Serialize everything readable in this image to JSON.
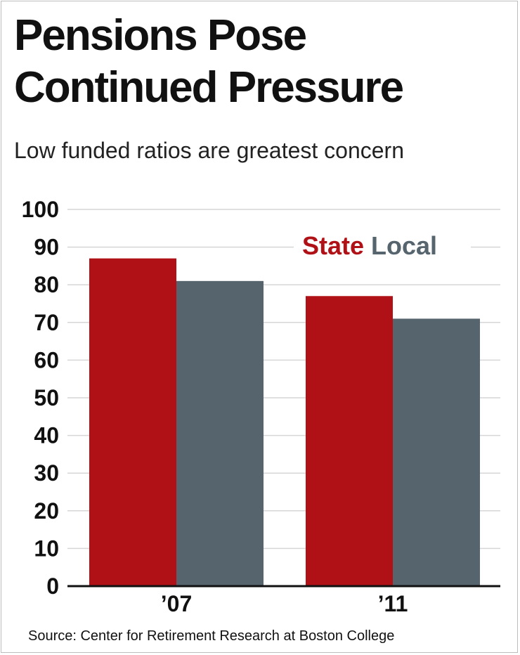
{
  "title": "Pensions Pose Continued Pressure",
  "subtitle": "Low funded ratios are greatest concern",
  "source": "Source: Center for Retirement Research at Boston College",
  "colors": {
    "state": "#B01116",
    "local": "#56646D",
    "gridline": "#d6d6d6",
    "axis": "#111111"
  },
  "chart_data": {
    "type": "bar",
    "title": "Pensions Pose Continued Pressure",
    "subtitle": "Low funded ratios are greatest concern",
    "categories": [
      "’07",
      "’11"
    ],
    "series": [
      {
        "name": "State",
        "values": [
          87,
          77
        ]
      },
      {
        "name": "Local",
        "values": [
          81,
          71
        ]
      }
    ],
    "xlabel": "",
    "ylabel": "",
    "ylim": [
      0,
      100
    ],
    "yticks": [
      0,
      10,
      20,
      30,
      40,
      50,
      60,
      70,
      80,
      90,
      100
    ],
    "grid": true,
    "legend_position": "top-right"
  }
}
